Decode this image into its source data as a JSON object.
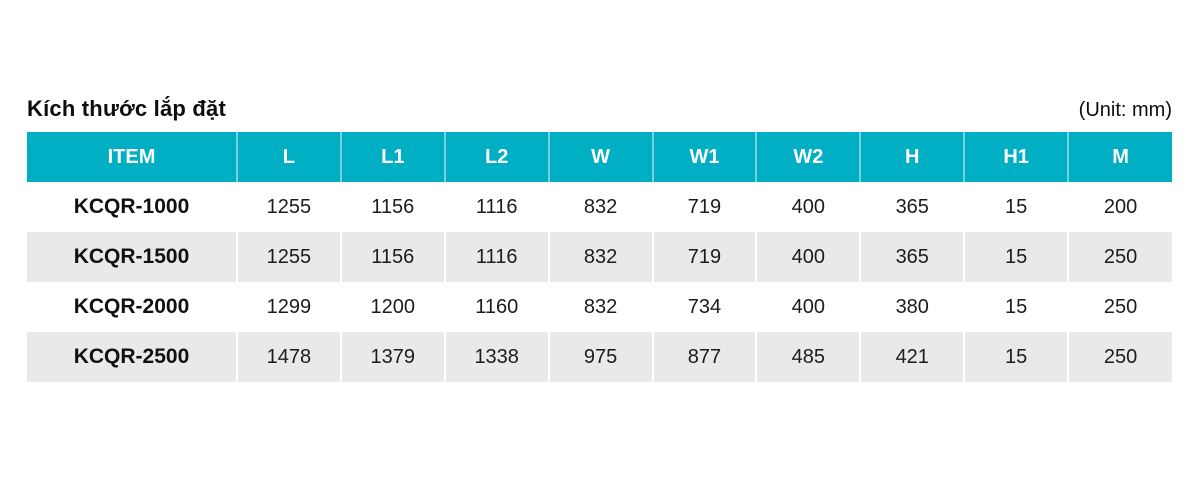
{
  "page": {
    "title": "Kích thước lắp đặt",
    "unit_label": "(Unit: mm)"
  },
  "table": {
    "columns": [
      "ITEM",
      "L",
      "L1",
      "L2",
      "W",
      "W1",
      "W2",
      "H",
      "H1",
      "M"
    ],
    "rows": [
      {
        "item": "KCQR-1000",
        "values": [
          1255,
          1156,
          1116,
          832,
          719,
          400,
          365,
          15,
          200
        ]
      },
      {
        "item": "KCQR-1500",
        "values": [
          1255,
          1156,
          1116,
          832,
          719,
          400,
          365,
          15,
          250
        ]
      },
      {
        "item": "KCQR-2000",
        "values": [
          1299,
          1200,
          1160,
          832,
          734,
          400,
          380,
          15,
          250
        ]
      },
      {
        "item": "KCQR-2500",
        "values": [
          1478,
          1379,
          1338,
          975,
          877,
          485,
          421,
          15,
          250
        ]
      }
    ],
    "colors": {
      "header_bg": "#00AFC3",
      "header_text": "#FFFFFF",
      "row_alt_bg": "#E9E9E9",
      "body_text": "#1C1C1C"
    }
  },
  "chart_data": {
    "type": "table",
    "title": "Kích thước lắp đặt",
    "unit": "mm",
    "categories": [
      "L",
      "L1",
      "L2",
      "W",
      "W1",
      "W2",
      "H",
      "H1",
      "M"
    ],
    "series": [
      {
        "name": "KCQR-1000",
        "values": [
          1255,
          1156,
          1116,
          832,
          719,
          400,
          365,
          15,
          200
        ]
      },
      {
        "name": "KCQR-1500",
        "values": [
          1255,
          1156,
          1116,
          832,
          719,
          400,
          365,
          15,
          250
        ]
      },
      {
        "name": "KCQR-2000",
        "values": [
          1299,
          1200,
          1160,
          832,
          734,
          400,
          380,
          15,
          250
        ]
      },
      {
        "name": "KCQR-2500",
        "values": [
          1478,
          1379,
          1338,
          975,
          877,
          485,
          421,
          15,
          250
        ]
      }
    ]
  }
}
